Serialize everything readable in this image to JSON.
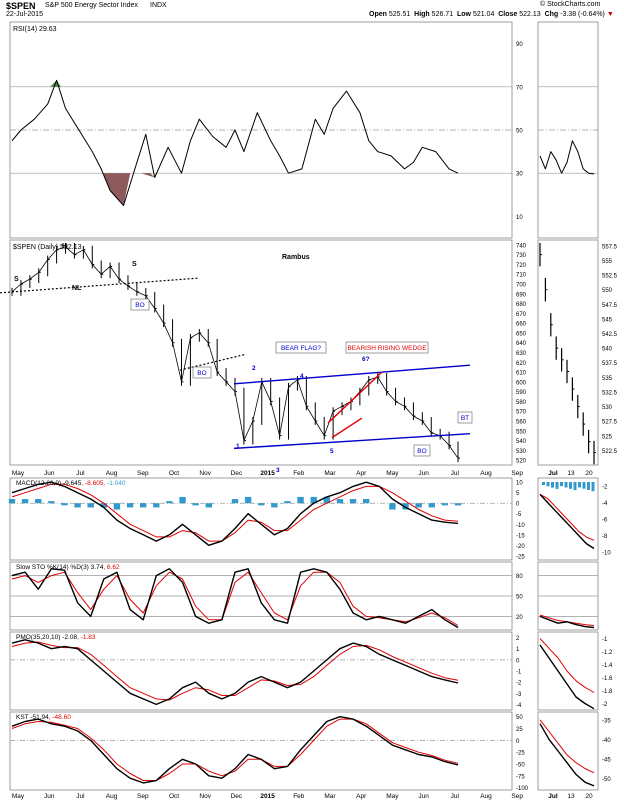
{
  "header": {
    "symbol": "$SPEN",
    "name": "S&P 500 Energy Sector Index",
    "exchange": "INDX",
    "date": "22-Jul-2015",
    "open_label": "Open",
    "open": "525.51",
    "high_label": "High",
    "high": "526.71",
    "low_label": "Low",
    "low": "521.04",
    "close_label": "Close",
    "close": "522.13",
    "chg_label": "Chg",
    "chg": "-3.38 (-0.64%)",
    "watermark": "© StockCharts.com"
  },
  "colors": {
    "price": "#000000",
    "signal": "#e00000",
    "histogram": "#3399cc",
    "trend": "#0000cc",
    "wedge": "#e00000",
    "overbought": "#5a8a4a",
    "oversold": "#8c5a5a"
  },
  "x_axis": {
    "main": [
      "May",
      "Jun",
      "Jul",
      "Aug",
      "Sep",
      "Oct",
      "Nov",
      "Dec",
      "2015",
      "Feb",
      "Mar",
      "Apr",
      "May",
      "Jun",
      "Jul",
      "Aug",
      "Sep"
    ],
    "side": [
      "Jul",
      "13",
      "20"
    ]
  },
  "chart_data": [
    {
      "type": "line",
      "panel": "rsi",
      "title": "RSI(14) 29.63",
      "yticks": [
        10,
        30,
        50,
        70,
        90
      ],
      "ylim": [
        0,
        100
      ],
      "x_range": [
        0,
        1
      ],
      "x": [
        0.0,
        0.02,
        0.05,
        0.08,
        0.1,
        0.12,
        0.15,
        0.18,
        0.2,
        0.22,
        0.25,
        0.28,
        0.3,
        0.32,
        0.35,
        0.38,
        0.4,
        0.42,
        0.45,
        0.48,
        0.5,
        0.52,
        0.55,
        0.58,
        0.6,
        0.62,
        0.65,
        0.68,
        0.7,
        0.72,
        0.75,
        0.78,
        0.8,
        0.82,
        0.85,
        0.88,
        0.9,
        0.92,
        0.95,
        0.98,
        1.0
      ],
      "y": [
        45,
        50,
        55,
        62,
        73,
        60,
        50,
        40,
        32,
        22,
        15,
        35,
        48,
        28,
        42,
        30,
        45,
        55,
        47,
        42,
        50,
        40,
        58,
        45,
        38,
        30,
        32,
        55,
        48,
        60,
        68,
        58,
        45,
        40,
        38,
        32,
        35,
        42,
        40,
        32,
        30
      ],
      "side_y": [
        38,
        32,
        40,
        36,
        30,
        35,
        45,
        40,
        32,
        30,
        29.63
      ]
    },
    {
      "type": "line",
      "panel": "price",
      "title": "$SPEN (Daily) 522.13",
      "annotation_title": "Rambus",
      "yticks": [
        520,
        530,
        540,
        550,
        560,
        570,
        580,
        590,
        600,
        610,
        620,
        630,
        640,
        650,
        660,
        670,
        680,
        690,
        700,
        710,
        720,
        730,
        740
      ],
      "ylim": [
        515,
        745
      ],
      "side_yticks": [
        522.5,
        525.0,
        527.5,
        530.0,
        532.5,
        535.0,
        537.5,
        540.0,
        542.5,
        545.0,
        547.5,
        550.0,
        552.5,
        555.0,
        557.5
      ],
      "side_ylim": [
        520,
        558.5
      ],
      "x_range": [
        0,
        1
      ],
      "x": [
        0.0,
        0.02,
        0.04,
        0.06,
        0.08,
        0.1,
        0.12,
        0.14,
        0.16,
        0.18,
        0.2,
        0.22,
        0.24,
        0.26,
        0.28,
        0.3,
        0.32,
        0.34,
        0.36,
        0.38,
        0.4,
        0.42,
        0.44,
        0.46,
        0.48,
        0.5,
        0.52,
        0.54,
        0.56,
        0.58,
        0.6,
        0.62,
        0.64,
        0.66,
        0.68,
        0.7,
        0.72,
        0.74,
        0.76,
        0.78,
        0.8,
        0.82,
        0.84,
        0.86,
        0.88,
        0.9,
        0.92,
        0.94,
        0.96,
        0.98,
        1.0
      ],
      "y": [
        692,
        700,
        705,
        712,
        725,
        735,
        738,
        730,
        735,
        720,
        710,
        718,
        705,
        698,
        692,
        688,
        675,
        660,
        640,
        600,
        645,
        650,
        640,
        610,
        600,
        590,
        540,
        560,
        600,
        580,
        545,
        595,
        602,
        575,
        560,
        545,
        570,
        575,
        580,
        590,
        602,
        605,
        590,
        580,
        575,
        565,
        560,
        548,
        545,
        535,
        522
      ],
      "side_y": [
        556,
        550,
        544,
        540,
        538,
        536,
        533,
        530,
        527,
        524,
        522.13
      ],
      "labels": [
        "S",
        "H",
        "S",
        "NL",
        "BO",
        "BO",
        "BEAR FLAG?",
        "BEARISH RISING WEDGE",
        "1",
        "2",
        "3",
        "4",
        "5",
        "6?",
        "BO",
        "BT"
      ]
    },
    {
      "type": "line",
      "panel": "macd",
      "title": "MACD(12,26,9)",
      "values_text": [
        "-9.645",
        "-8.605",
        "-1.040"
      ],
      "yticks": [
        -25,
        -20,
        -15,
        -10,
        -5,
        0,
        5,
        10
      ],
      "ylim": [
        -27,
        12
      ],
      "side_yticks": [
        -2,
        -4,
        -6,
        -8,
        -10
      ],
      "side_ylim": [
        -11,
        -1
      ],
      "series": [
        {
          "name": "MACD",
          "values": [
            5,
            7,
            9,
            10,
            8,
            5,
            2,
            -2,
            -8,
            -12,
            -15,
            -18,
            -15,
            -10,
            -15,
            -20,
            -18,
            -12,
            -5,
            -10,
            -15,
            -12,
            -5,
            0,
            3,
            5,
            8,
            10,
            8,
            2,
            -2,
            -5,
            -8,
            -9,
            -9.6
          ]
        },
        {
          "name": "Signal",
          "values": [
            3,
            5,
            7,
            9,
            9,
            7,
            4,
            0,
            -5,
            -10,
            -13,
            -16,
            -16,
            -13,
            -14,
            -18,
            -18,
            -14,
            -8,
            -9,
            -13,
            -13,
            -8,
            -3,
            0,
            3,
            6,
            8,
            8,
            5,
            1,
            -3,
            -6,
            -8,
            -8.6
          ]
        }
      ],
      "histogram": [
        2,
        2,
        2,
        1,
        -1,
        -2,
        -2,
        -2,
        -3,
        -2,
        -2,
        -2,
        1,
        3,
        -1,
        -2,
        0,
        2,
        3,
        -1,
        -2,
        1,
        3,
        3,
        3,
        2,
        2,
        2,
        0,
        -3,
        -3,
        -2,
        -2,
        -1,
        -1.04
      ],
      "side_series": [
        [
          -3,
          -4,
          -5,
          -6,
          -7,
          -8,
          -9,
          -9.6
        ],
        [
          -3,
          -3.5,
          -4.5,
          -5.5,
          -6.5,
          -7.5,
          -8.2,
          -8.6
        ]
      ]
    },
    {
      "type": "line",
      "panel": "sto",
      "title": "Slow STO %K(14) %D(3)",
      "values_text": [
        "3.74",
        "6.62"
      ],
      "yticks": [
        20,
        50,
        80
      ],
      "ylim": [
        0,
        100
      ],
      "series": [
        {
          "name": "%K",
          "values": [
            80,
            85,
            60,
            90,
            88,
            40,
            20,
            75,
            85,
            30,
            15,
            80,
            90,
            70,
            20,
            10,
            15,
            85,
            90,
            40,
            15,
            10,
            85,
            90,
            85,
            60,
            25,
            15,
            20,
            15,
            10,
            20,
            30,
            15,
            3.74
          ]
        },
        {
          "name": "%D",
          "values": [
            75,
            80,
            70,
            80,
            85,
            55,
            30,
            60,
            80,
            45,
            25,
            65,
            85,
            75,
            35,
            15,
            15,
            70,
            85,
            55,
            25,
            15,
            65,
            85,
            85,
            70,
            35,
            20,
            18,
            15,
            12,
            18,
            25,
            18,
            6.62
          ]
        }
      ],
      "side_series": [
        [
          20,
          15,
          10,
          12,
          8,
          5,
          3.74
        ],
        [
          22,
          18,
          14,
          12,
          10,
          8,
          6.62
        ]
      ]
    },
    {
      "type": "line",
      "panel": "pmo",
      "title": "PMO(35,20,10)",
      "values_text": [
        "-2.08",
        "-1.83"
      ],
      "yticks": [
        -4,
        -3,
        -2,
        -1,
        0,
        1,
        2
      ],
      "ylim": [
        -4.5,
        2.5
      ],
      "side_yticks": [
        -2.0,
        -1.8,
        -1.6,
        -1.4,
        -1.2,
        -1.0
      ],
      "side_ylim": [
        -2.1,
        -0.9
      ],
      "series": [
        {
          "name": "PMO",
          "values": [
            1.5,
            1.8,
            1.5,
            1,
            1.2,
            1,
            0,
            -1,
            -2,
            -3,
            -3.5,
            -4,
            -3.5,
            -2.5,
            -2,
            -3,
            -3.5,
            -3,
            -2,
            -1.5,
            -2,
            -2.5,
            -2,
            -1,
            0,
            1,
            1.5,
            1.2,
            0.5,
            0,
            -0.5,
            -1,
            -1.5,
            -1.8,
            -2.08
          ]
        },
        {
          "name": "Signal",
          "values": [
            1.2,
            1.5,
            1.6,
            1.3,
            1.1,
            1.1,
            0.5,
            -0.5,
            -1.5,
            -2.5,
            -3,
            -3.5,
            -3.6,
            -3,
            -2.5,
            -2.7,
            -3.2,
            -3.2,
            -2.5,
            -1.8,
            -1.9,
            -2.3,
            -2.2,
            -1.5,
            -0.5,
            0.5,
            1.2,
            1.3,
            0.9,
            0.3,
            -0.2,
            -0.7,
            -1.2,
            -1.6,
            -1.83
          ]
        }
      ],
      "side_series": [
        [
          -1.1,
          -1.3,
          -1.5,
          -1.7,
          -1.9,
          -2.0,
          -2.08
        ],
        [
          -1.0,
          -1.15,
          -1.3,
          -1.5,
          -1.65,
          -1.75,
          -1.83
        ]
      ]
    },
    {
      "type": "line",
      "panel": "kst",
      "title": "KST",
      "values_text": [
        "-51.94",
        "-48.60"
      ],
      "yticks": [
        -100,
        -75,
        -50,
        -25,
        0,
        25,
        50
      ],
      "ylim": [
        -105,
        60
      ],
      "side_yticks": [
        -50.0,
        -45.0,
        -40.0,
        -35.0
      ],
      "side_ylim": [
        -53,
        -33
      ],
      "series": [
        {
          "name": "KST",
          "values": [
            30,
            40,
            45,
            35,
            30,
            20,
            0,
            -30,
            -60,
            -80,
            -90,
            -85,
            -60,
            -40,
            -50,
            -75,
            -80,
            -60,
            -30,
            -40,
            -60,
            -55,
            -20,
            10,
            40,
            50,
            45,
            30,
            10,
            -10,
            -20,
            -30,
            -35,
            -45,
            -51.94
          ]
        },
        {
          "name": "Signal",
          "values": [
            25,
            35,
            40,
            38,
            32,
            25,
            5,
            -20,
            -50,
            -70,
            -85,
            -85,
            -70,
            -50,
            -50,
            -65,
            -75,
            -65,
            -40,
            -40,
            -55,
            -55,
            -30,
            0,
            30,
            45,
            45,
            35,
            15,
            -5,
            -15,
            -25,
            -32,
            -42,
            -48.6
          ]
        }
      ],
      "side_series": [
        [
          -36,
          -40,
          -43,
          -46,
          -49,
          -51,
          -51.94
        ],
        [
          -35,
          -38,
          -41,
          -44,
          -46,
          -47.5,
          -48.6
        ]
      ]
    }
  ]
}
